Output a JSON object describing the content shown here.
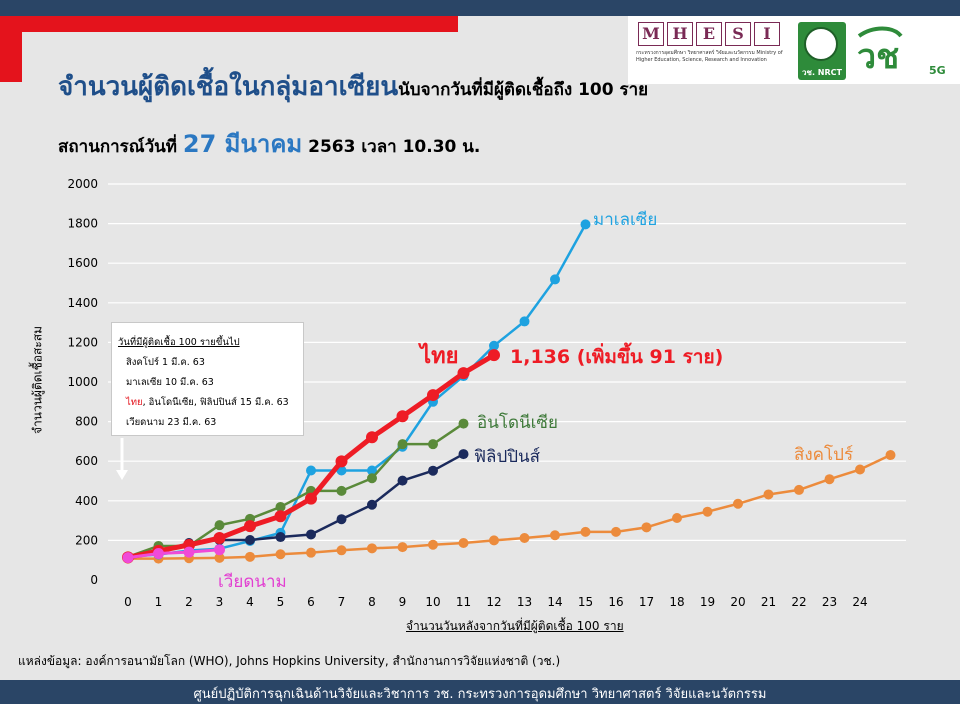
{
  "header": {
    "title_main": "จำนวนผู้ติดเชื้อในกลุ่มอาเซียน",
    "title_sub": "นับจากวันที่มีผู้ติดเชื้อถึง 100 ราย",
    "status_prefix": "สถานการณ์วันที่ ",
    "status_date": "27 มีนาคม",
    "status_suffix": " 2563 เวลา 10.30 น."
  },
  "logos": {
    "mhesi_letters": [
      "M",
      "H",
      "E",
      "S",
      "I"
    ],
    "mhesi_caption": "กระทรวงการอุดมศึกษา วิทยาศาสตร์ วิจัยและนวัตกรรม Ministry of Higher Education, Science, Research and Innovation",
    "nrct_label": "วช. NRCT",
    "wch_label": "วช",
    "wch_5g": "5G"
  },
  "chart_data": {
    "type": "line",
    "ylabel": "จำนวนผู้ติดเชื้อสะสม",
    "xlabel": "จำนวนวันหลังจากวันที่มีผู้ติดเชื้อ 100 ราย",
    "xlim": [
      0,
      25
    ],
    "ylim": [
      0,
      2000
    ],
    "yticks": [
      0,
      200,
      400,
      600,
      800,
      1000,
      1200,
      1400,
      1600,
      1800,
      2000
    ],
    "xticks": [
      0,
      1,
      2,
      3,
      4,
      5,
      6,
      7,
      8,
      9,
      10,
      11,
      12,
      13,
      14,
      15,
      16,
      17,
      18,
      19,
      20,
      21,
      22,
      23,
      24
    ],
    "grid": true,
    "series": [
      {
        "name": "สิงคโปร์",
        "color": "#ec8b3c",
        "label_color": "#ec8b3c",
        "x": [
          0,
          1,
          2,
          3,
          4,
          5,
          6,
          7,
          8,
          9,
          10,
          11,
          12,
          13,
          14,
          15,
          16,
          17,
          18,
          19,
          20,
          21,
          22,
          23,
          24,
          25
        ],
        "y": [
          108,
          108,
          110,
          112,
          117,
          130,
          138,
          150,
          160,
          166,
          178,
          187,
          200,
          212,
          226,
          243,
          243,
          266,
          313,
          345,
          385,
          432,
          455,
          509,
          558,
          631
        ]
      },
      {
        "name": "มาเลเซีย",
        "color": "#1ea2e0",
        "label_color": "#1ea2e0",
        "x": [
          0,
          1,
          2,
          3,
          4,
          5,
          6,
          7,
          8,
          9,
          10,
          11,
          12,
          13,
          14,
          15
        ],
        "y": [
          117,
          129,
          149,
          158,
          197,
          238,
          553,
          553,
          553,
          673,
          900,
          1030,
          1183,
          1306,
          1518,
          1796
        ]
      },
      {
        "name": "อินโดนีเซีย",
        "color": "#5a8a3a",
        "label_color": "#3f7a3a",
        "x": [
          0,
          1,
          2,
          3,
          4,
          5,
          6,
          7,
          8,
          9,
          10,
          11
        ],
        "y": [
          117,
          172,
          172,
          277,
          309,
          369,
          450,
          450,
          514,
          686,
          686,
          790
        ]
      },
      {
        "name": "ฟิลิปปินส์",
        "color": "#1b2a5c",
        "label_color": "#1b2a5c",
        "x": [
          0,
          1,
          2,
          3,
          4,
          5,
          6,
          7,
          8,
          9,
          10,
          11
        ],
        "y": [
          111,
          140,
          187,
          202,
          202,
          217,
          230,
          307,
          380,
          502,
          552,
          636
        ]
      },
      {
        "name": "ไทย",
        "color": "#ee1c25",
        "label_color": "#ee1c25",
        "x": [
          0,
          1,
          2,
          3,
          4,
          5,
          6,
          7,
          8,
          9,
          10,
          11,
          12
        ],
        "y": [
          114,
          147,
          177,
          212,
          272,
          322,
          411,
          599,
          721,
          827,
          934,
          1045,
          1136
        ]
      },
      {
        "name": "เวียดนาม",
        "color": "#f04ad8",
        "label_color": "#e23fd1",
        "x": [
          0,
          1,
          2,
          3
        ],
        "y": [
          113,
          134,
          141,
          153
        ]
      }
    ],
    "annotations": {
      "thai_value": "1,136 (เพิ่มขึ้น 91 ราย)"
    }
  },
  "legend_box": {
    "heading": "วันที่มีผู้ติดเชื้อ 100 รายขึ้นไป",
    "row1": "สิงคโปร์   1 มี.ค. 63",
    "row2": "มาเลเซีย  10 มี.ค. 63",
    "row3_th": "ไทย",
    "row3_rest": ", อินโดนีเซีย, ฟิลิปปินส์  15 มี.ค. 63",
    "row4": "เวียดนาม 23 มี.ค. 63"
  },
  "source": "แหล่งข้อมูล: องค์การอนามัยโลก (WHO), Johns Hopkins University, สำนักงานการวิจัยแห่งชาติ (วช.)",
  "footer": "ศูนย์ปฏิบัติการฉุกเฉินด้านวิจัยและวิชาการ   วช.   กระทรวงการอุดมศึกษา วิทยาศาสตร์ วิจัยและนวัตกรรม"
}
